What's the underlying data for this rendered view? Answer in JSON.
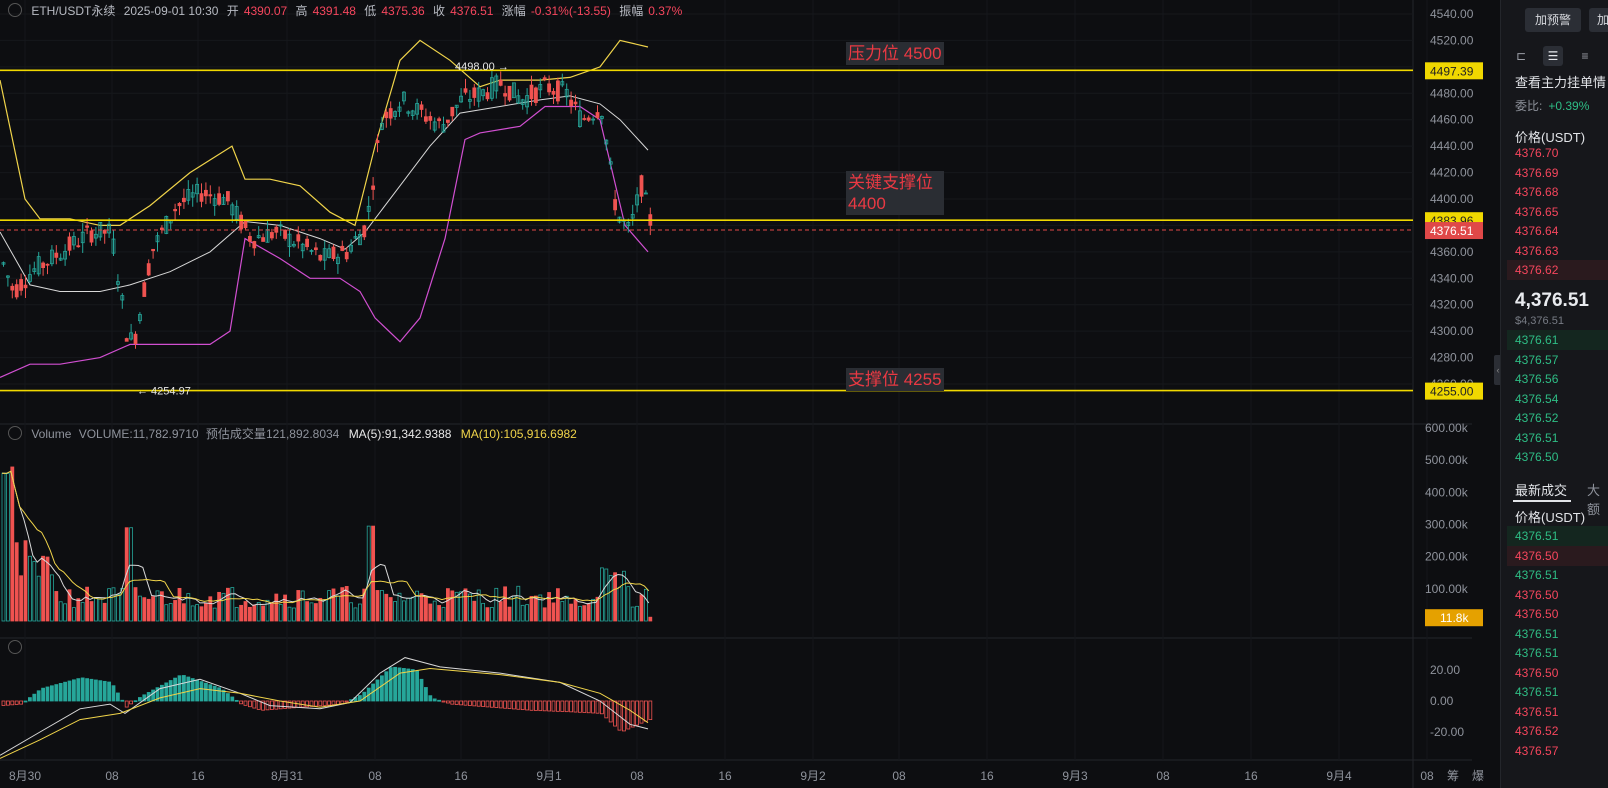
{
  "header": {
    "symbol": "ETH/USDT永续",
    "datetime": "2025-09-01 10:30",
    "open_label": "开",
    "open": "4390.07",
    "high_label": "高",
    "high": "4391.48",
    "low_label": "低",
    "low": "4375.36",
    "close_label": "收",
    "close": "4376.51",
    "change_label": "涨幅",
    "change": "-0.31%(-13.55)",
    "amp_label": "振幅",
    "amp": "0.37%"
  },
  "volume_header": {
    "label": "Volume",
    "volume": "VOLUME:11,782.9710",
    "est_label": "预估成交量",
    "est": "121,892.8034",
    "ma5": "MA(5):91,342.9388",
    "ma10": "MA(10):105,916.6982"
  },
  "annotations": {
    "resistance": "压力位 4500",
    "key_support_1": "关键支撑位",
    "key_support_2": "4400",
    "support": "支撑位 4255"
  },
  "markers": {
    "high": "4498.00",
    "low": "4254.97"
  },
  "price_axis": {
    "ticks": [
      "4540.00",
      "4520.00",
      "4500.00",
      "4480.00",
      "4460.00",
      "4440.00",
      "4420.00",
      "4400.00",
      "4380.00",
      "4360.00",
      "4340.00",
      "4320.00",
      "4300.00",
      "4280.00",
      "4260.00"
    ],
    "tags": {
      "level_4497": "4497.39",
      "level_4383": "4383.96",
      "current": "4376.51",
      "level_4255": "4255.00"
    }
  },
  "volume_axis": {
    "ticks": [
      "600.00k",
      "500.00k",
      "400.00k",
      "300.00k",
      "200.00k",
      "100.00k"
    ],
    "current_tag": "11.8k"
  },
  "macd_axis": {
    "ticks": [
      "20.00",
      "0.00",
      "-20.00"
    ]
  },
  "time_axis": {
    "labels": [
      "8月30",
      "08",
      "16",
      "8月31",
      "08",
      "16",
      "9月1",
      "08",
      "16",
      "9月2",
      "08",
      "16",
      "9月3",
      "08",
      "16",
      "9月4",
      "08"
    ],
    "corner": [
      "筹",
      "爆"
    ]
  },
  "colors": {
    "up": "#26a69a",
    "down": "#ef5350",
    "level_line": "#f0d800",
    "current": "#e04848",
    "ma": "#f0d44a",
    "boll_lower": "#d14fd1"
  },
  "side": {
    "alert_btn": "加预警",
    "alert_btn2": "加",
    "title": "查看主力挂单情",
    "ratio_label": "委比:",
    "ratio": "+0.39%",
    "book_head": "价格(USDT)",
    "asks": [
      "4376.70",
      "4376.69",
      "4376.68",
      "4376.65",
      "4376.64",
      "4376.63",
      "4376.62"
    ],
    "last_price": "4,376.51",
    "last_price_usd": "$4,376.51",
    "bids": [
      "4376.61",
      "4376.57",
      "4376.56",
      "4376.54",
      "4376.52",
      "4376.51",
      "4376.50"
    ],
    "trades_title": "最新成交",
    "trades_title2": "大额",
    "trades_head": "价格(USDT)",
    "trades": [
      {
        "p": "4376.51",
        "s": "green",
        "hl": true
      },
      {
        "p": "4376.50",
        "s": "red",
        "hl": true
      },
      {
        "p": "4376.51",
        "s": "green"
      },
      {
        "p": "4376.50",
        "s": "red"
      },
      {
        "p": "4376.50",
        "s": "red"
      },
      {
        "p": "4376.51",
        "s": "green"
      },
      {
        "p": "4376.51",
        "s": "green"
      },
      {
        "p": "4376.50",
        "s": "red"
      },
      {
        "p": "4376.51",
        "s": "green"
      },
      {
        "p": "4376.51",
        "s": "red"
      },
      {
        "p": "4376.52",
        "s": "red"
      },
      {
        "p": "4376.57",
        "s": "red"
      }
    ]
  }
}
